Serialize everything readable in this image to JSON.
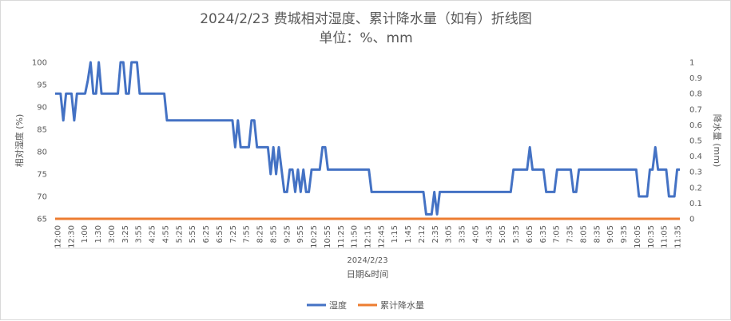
{
  "chart_data": {
    "type": "line",
    "title": "2024/2/23 费城相对湿度、累计降水量（如有）折线图",
    "subtitle": "单位：%、mm",
    "xlabel": "日期&时间",
    "x_group_label": "2024/2/23",
    "ylabel_left": "相对湿度 (%)",
    "ylabel_right": "降水量 (mm)",
    "ylim_left": [
      65,
      100
    ],
    "ylim_right": [
      0,
      1
    ],
    "y_ticks_left": [
      "65",
      "70",
      "75",
      "80",
      "85",
      "90",
      "95",
      "100"
    ],
    "y_ticks_right": [
      "0",
      "0.1",
      "0.2",
      "0.3",
      "0.4",
      "0.5",
      "0.6",
      "0.7",
      "0.8",
      "0.9",
      "1"
    ],
    "x_tick_labels": [
      "12:00",
      "12:30",
      "1:00",
      "1:30",
      "3:00",
      "3:25",
      "3:55",
      "4:25",
      "4:55",
      "5:25",
      "5:55",
      "6:25",
      "6:55",
      "7:25",
      "7:55",
      "8:25",
      "8:55",
      "9:25",
      "9:55",
      "10:25",
      "10:55",
      "11:25",
      "11:50",
      "12:15",
      "12:45",
      "1:15",
      "1:45",
      "2:12",
      "2:35",
      "3:05",
      "3:35",
      "4:05",
      "4:35",
      "5:05",
      "5:35",
      "6:05",
      "6:35",
      "7:05",
      "7:35",
      "8:05",
      "8:35",
      "9:05",
      "9:35",
      "10:05",
      "10:35",
      "11:05",
      "11:35"
    ],
    "legend_position": "bottom",
    "grid": false,
    "series": [
      {
        "name": "湿度",
        "color": "#4472c4",
        "axis": "left",
        "values": [
          93,
          93,
          93,
          87,
          93,
          93,
          93,
          87,
          93,
          93,
          93,
          93,
          96,
          100,
          93,
          93,
          100,
          93,
          93,
          93,
          93,
          93,
          93,
          93,
          100,
          100,
          93,
          93,
          100,
          100,
          100,
          93,
          93,
          93,
          93,
          93,
          93,
          93,
          93,
          93,
          93,
          87,
          87,
          87,
          87,
          87,
          87,
          87,
          87,
          87,
          87,
          87,
          87,
          87,
          87,
          87,
          87,
          87,
          87,
          87,
          87,
          87,
          87,
          87,
          87,
          87,
          81,
          87,
          81,
          81,
          81,
          81,
          87,
          87,
          81,
          81,
          81,
          81,
          81,
          75,
          81,
          75,
          81,
          76,
          71,
          71,
          76,
          76,
          71,
          76,
          71,
          76,
          71,
          71,
          76,
          76,
          76,
          76,
          81,
          81,
          76,
          76,
          76,
          76,
          76,
          76,
          76,
          76,
          76,
          76,
          76,
          76,
          76,
          76,
          76,
          76,
          71,
          71,
          71,
          71,
          71,
          71,
          71,
          71,
          71,
          71,
          71,
          71,
          71,
          71,
          71,
          71,
          71,
          71,
          71,
          71,
          66,
          66,
          66,
          71,
          66,
          71,
          71,
          71,
          71,
          71,
          71,
          71,
          71,
          71,
          71,
          71,
          71,
          71,
          71,
          71,
          71,
          71,
          71,
          71,
          71,
          71,
          71,
          71,
          71,
          71,
          71,
          71,
          76,
          76,
          76,
          76,
          76,
          76,
          81,
          76,
          76,
          76,
          76,
          76,
          71,
          71,
          71,
          71,
          76,
          76,
          76,
          76,
          76,
          76,
          71,
          71,
          76,
          76,
          76,
          76,
          76,
          76,
          76,
          76,
          76,
          76,
          76,
          76,
          76,
          76,
          76,
          76,
          76,
          76,
          76,
          76,
          76,
          76,
          70,
          70,
          70,
          70,
          76,
          76,
          81,
          76,
          76,
          76,
          76,
          70,
          70,
          70,
          76,
          76
        ]
      },
      {
        "name": "累计降水量",
        "color": "#ed7d31",
        "axis": "right",
        "values": [
          0,
          0
        ]
      }
    ]
  }
}
